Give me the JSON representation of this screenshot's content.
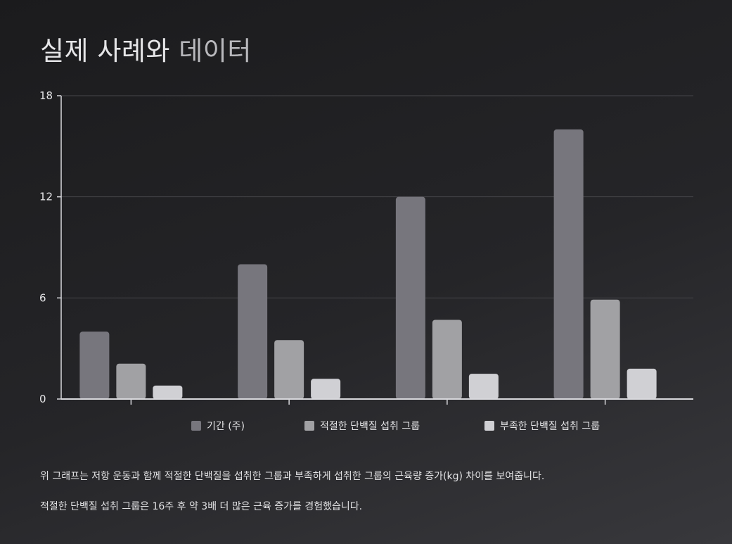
{
  "title": {
    "part1": "실제 사례와",
    "part2": "데이터"
  },
  "chart_data": {
    "type": "bar",
    "categories": [
      "",
      "",
      "",
      ""
    ],
    "series": [
      {
        "name": "기간 (주)",
        "values": [
          4,
          8,
          12,
          16
        ],
        "color": "#77767d"
      },
      {
        "name": "적절한 단백질 섭취 그룹",
        "values": [
          2.1,
          3.5,
          4.7,
          5.9
        ],
        "color": "#a1a1a4"
      },
      {
        "name": "부족한 단백질 섭취 그룹",
        "values": [
          0.8,
          1.2,
          1.5,
          1.8
        ],
        "color": "#d0d0d4"
      }
    ],
    "yticks": [
      0,
      6,
      12,
      18
    ],
    "ylim": [
      0,
      18
    ],
    "grid": true,
    "legend": "bottom"
  },
  "captions": {
    "line1": "위 그래프는 저항 운동과 함께 적절한 단백질을 섭취한 그룹과 부족하게 섭취한 그룹의 근육량 증가(kg) 차이를 보여줍니다.",
    "line2": "적절한 단백질 섭취 그룹은 16주 후 약 3배 더 많은 근육 증가를 경험했습니다."
  }
}
